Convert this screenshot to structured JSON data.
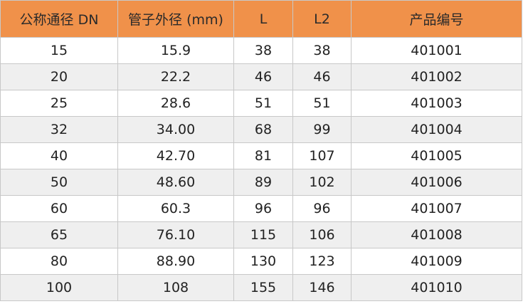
{
  "table": {
    "headers": [
      "公称通径 DN",
      "管子外径 (mm)",
      "L",
      "L2",
      "产品编号"
    ],
    "rows": [
      [
        "15",
        "15.9",
        "38",
        "38",
        "401001"
      ],
      [
        "20",
        "22.2",
        "46",
        "46",
        "401002"
      ],
      [
        "25",
        "28.6",
        "51",
        "51",
        "401003"
      ],
      [
        "32",
        "34.00",
        "68",
        "99",
        "401004"
      ],
      [
        "40",
        "42.70",
        "81",
        "107",
        "401005"
      ],
      [
        "50",
        "48.60",
        "89",
        "102",
        "401006"
      ],
      [
        "60",
        "60.3",
        "96",
        "96",
        "401007"
      ],
      [
        "65",
        "76.10",
        "115",
        "106",
        "401008"
      ],
      [
        "80",
        "88.90",
        "130",
        "123",
        "401009"
      ],
      [
        "100",
        "108",
        "155",
        "146",
        "401010"
      ]
    ]
  },
  "colors": {
    "header_bg": "#f0914a",
    "alt_row_bg": "#efefef",
    "border": "#c8c8c8"
  }
}
